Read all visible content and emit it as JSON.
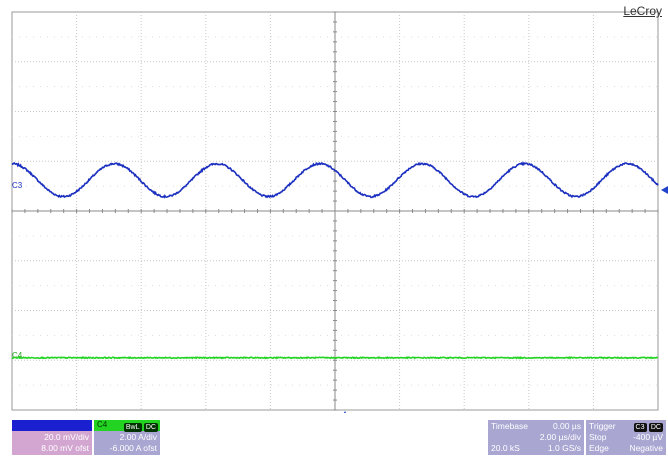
{
  "brand": "LeCroy",
  "colors": {
    "grid_major": "#a8a8a8",
    "grid_minor": "#c8c8c8",
    "c3_trace": "#1a2fbf",
    "c4_trace": "#22d322",
    "c3_panel_body": "#d2a6d0",
    "c4_panel_body": "#a9a6d2",
    "info_panel": "#a9a6d2",
    "marker": "#2244cc"
  },
  "channels": {
    "c3": {
      "label": "C3",
      "scale": "20.0 mV/div",
      "offset": "8.00 mV ofst"
    },
    "c4": {
      "label": "C4",
      "bw_badge": "BwL",
      "coupling_badge": "DC",
      "scale": "2.00 A/div",
      "offset": "-6.000 A ofst"
    }
  },
  "timebase": {
    "label": "Timebase",
    "delay": "0.00 µs",
    "per_div": "2.00 µs/div",
    "samples": "20.0 kS",
    "rate": "1.0 GS/s"
  },
  "trigger": {
    "label": "Trigger",
    "source_badge": "C3",
    "coupling_badge": "DC",
    "mode": "Stop",
    "level": "-400 µV",
    "type": "Edge",
    "slope": "Negative"
  },
  "chart_data": {
    "type": "line",
    "x_divisions": 10,
    "y_divisions": 8,
    "series": [
      {
        "name": "C3",
        "unit": "mV",
        "volts_per_div": 20,
        "offset": 8,
        "waveform": "sine",
        "periods_on_screen": 6.3,
        "amplitude_div": 0.33,
        "center_div": 0.62,
        "phase_deg": 90
      },
      {
        "name": "C4",
        "unit": "A",
        "amps_per_div": 2,
        "offset": -6,
        "waveform": "flat",
        "level_div": -2.95
      }
    ]
  }
}
